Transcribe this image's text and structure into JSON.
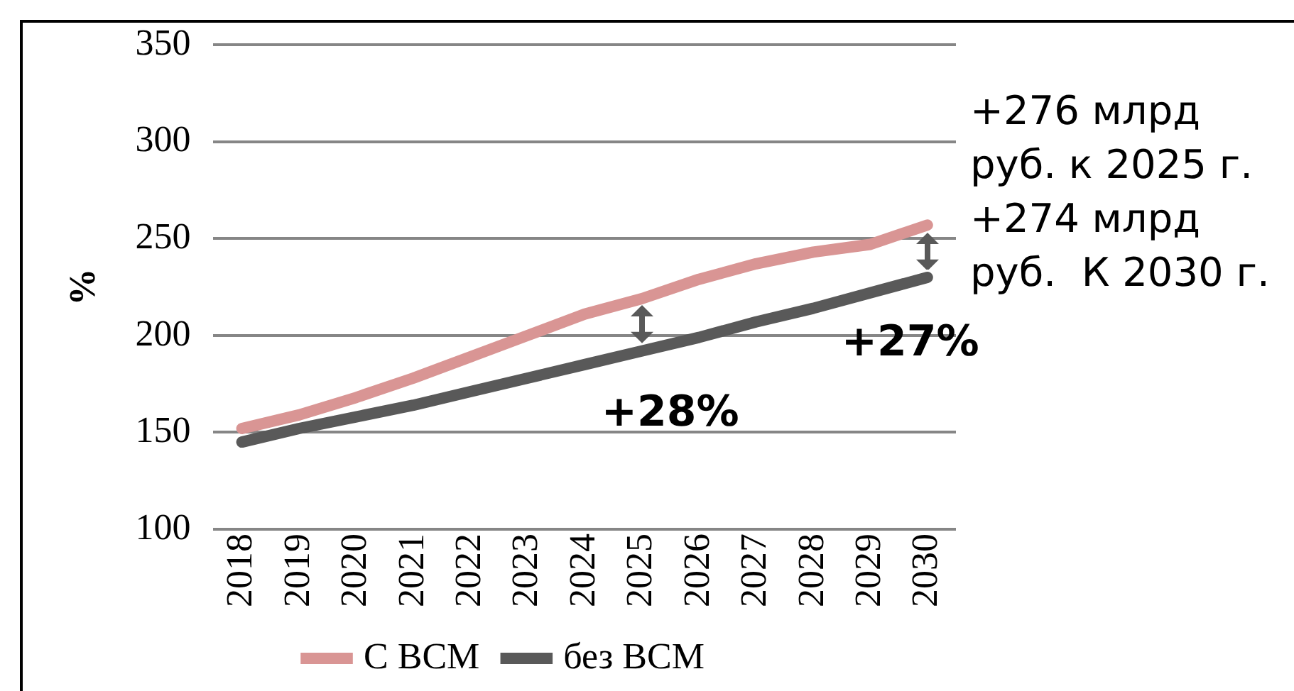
{
  "chart_data": {
    "type": "line",
    "ylabel": "%",
    "categories": [
      "2018",
      "2019",
      "2020",
      "2021",
      "2022",
      "2023",
      "2024",
      "2025",
      "2026",
      "2027",
      "2028",
      "2029",
      "2030"
    ],
    "series": [
      {
        "name": "С ВСМ",
        "color": "#d99594",
        "values": [
          152,
          159,
          168,
          178,
          189,
          200,
          211,
          219,
          229,
          237,
          243,
          247,
          257
        ]
      },
      {
        "name": "без ВСМ",
        "color": "#595959",
        "values": [
          145,
          152,
          158,
          164,
          171,
          178,
          185,
          192,
          199,
          207,
          214,
          222,
          230
        ]
      }
    ],
    "ylim": [
      100,
      350
    ],
    "yticks": [
      100,
      150,
      200,
      250,
      300,
      350
    ],
    "grid": "y",
    "legend": "bottom",
    "marker": "none",
    "line_style": "solid",
    "annotations": [
      "+28%",
      "+27%",
      "+276 млрд\nруб. к 2025 г.",
      "+274 млрд\nруб.  К 2030 г."
    ]
  }
}
